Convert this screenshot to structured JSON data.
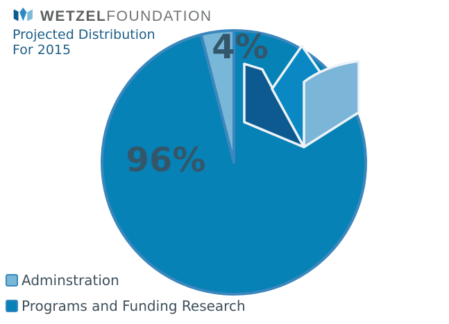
{
  "logo": {
    "brand_bold": "WETZEL",
    "brand_light": "FOUNDATION",
    "icon": "open-book-icon"
  },
  "colors": {
    "programs": "#0782b6",
    "administration": "#78b7d8",
    "outline": "#3b87bd",
    "label_text": "#34566a",
    "title_text": "#1b5e86",
    "brand_text": "#5b5e60",
    "legend_text": "#3e4f5b",
    "logo_dark": "#0c5a8f",
    "logo_mid": "#2b8cc4",
    "logo_light": "#7bbad9"
  },
  "chart_data": {
    "type": "pie",
    "title": [
      "Projected Distribution",
      "For 2015"
    ],
    "slices": [
      {
        "label": "Adminstration",
        "value": 4,
        "value_label": "4%"
      },
      {
        "label": "Programs and Funding Research",
        "value": 96,
        "value_label": "96%"
      }
    ],
    "legend": {
      "placement": "bottom-left",
      "entries": [
        "Adminstration",
        "Programs and Funding Research"
      ]
    }
  }
}
